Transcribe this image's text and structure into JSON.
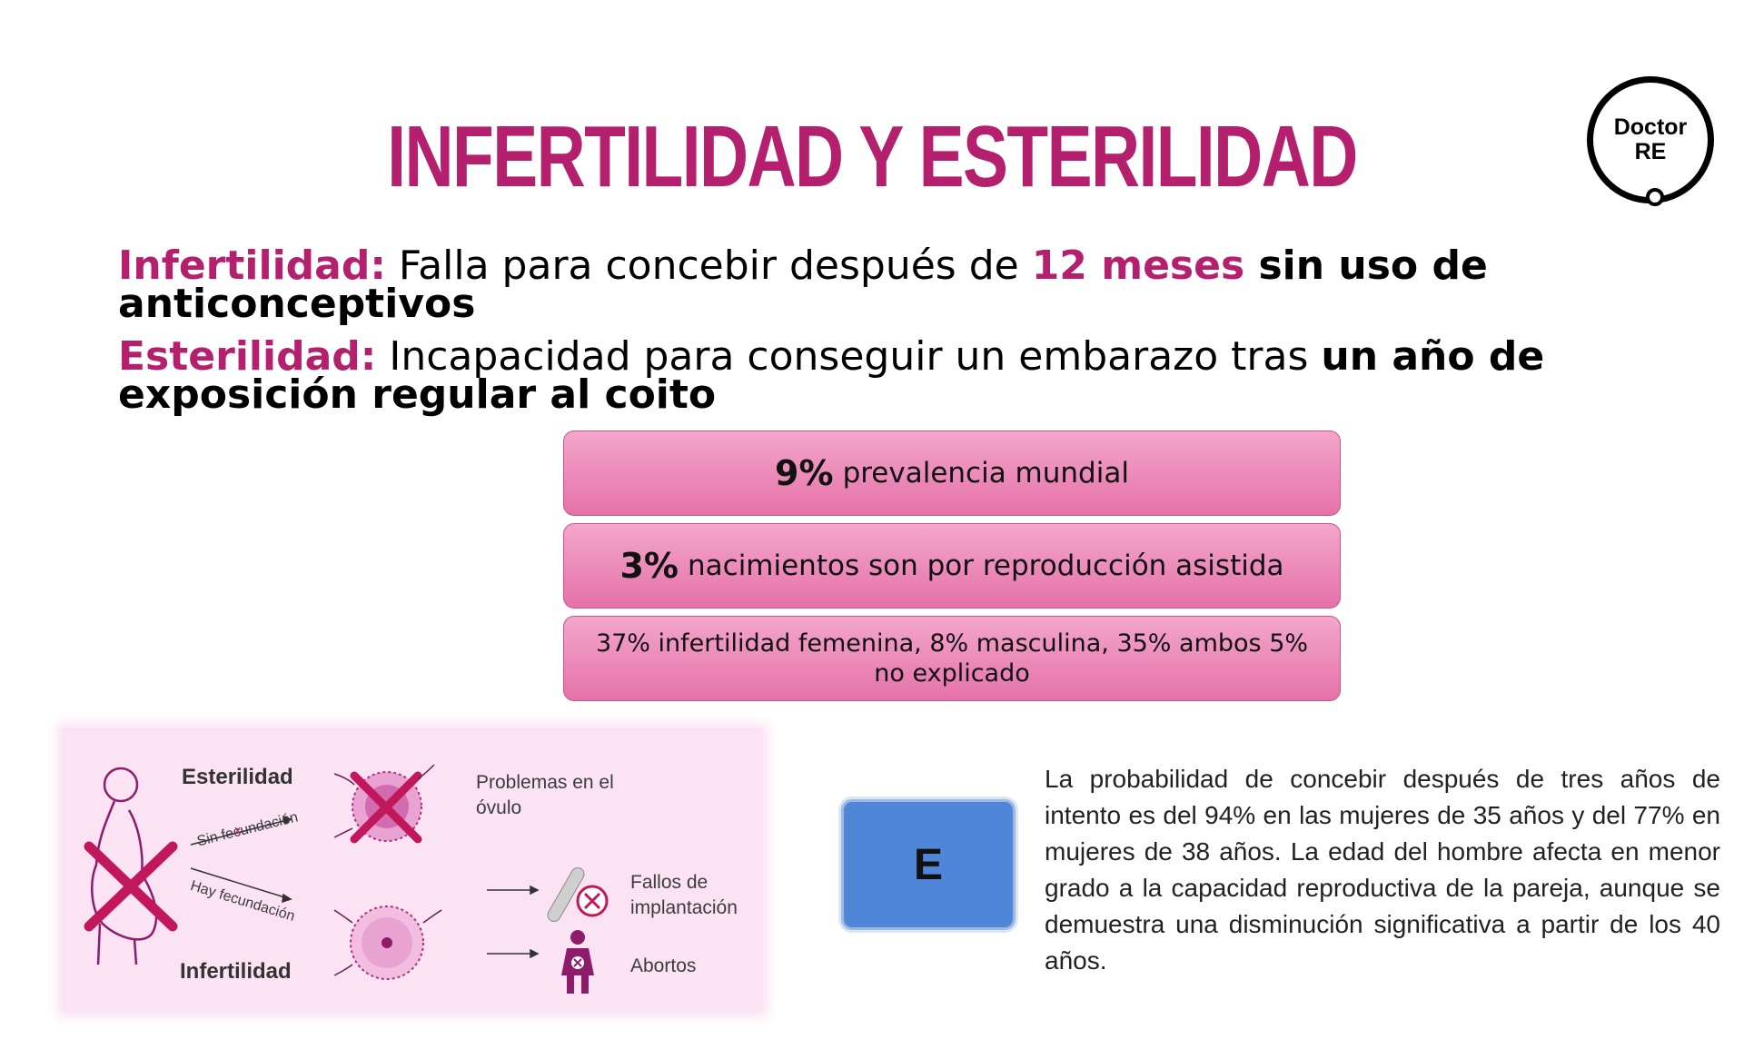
{
  "title": "INFERTILIDAD Y ESTERILIDAD",
  "logo": {
    "line1": "Doctor",
    "line2": "RE"
  },
  "definitions": {
    "infertilidad": {
      "term": "Infertilidad:",
      "text1": " Falla para concebir después de ",
      "highlight": "12 meses",
      "bold": " sin uso de anticonceptivos"
    },
    "esterilidad": {
      "term": "Esterilidad:",
      "text1": " Incapacidad para conseguir un embarazo tras ",
      "bold": "un año de exposición regular al coito"
    }
  },
  "stats": [
    {
      "big": "9%",
      "text": "prevalencia mundial"
    },
    {
      "big": "3%",
      "text": "nacimientos son por reproducción asistida"
    },
    {
      "text": "37% infertilidad femenina, 8% masculina, 35% ambos 5% no explicado"
    }
  ],
  "illustration": {
    "esterilidad": "Esterilidad",
    "infertilidad": "Infertilidad",
    "sin_fecundacion": "Sin fecundación",
    "hay_fecundacion": "Hay fecundación",
    "problemas_ovulo": "Problemas en el óvulo",
    "fallos_implantacion": "Fallos de implantación",
    "abortos": "Abortos",
    "colors": {
      "background": "#fbe3f3",
      "accent": "#c2185b",
      "cell": "#e9a3d3"
    }
  },
  "answer_label": "E",
  "paragraph": "La probabilidad de concebir después de tres años de intento es del 94% en las mujeres de 35 años y del 77% en mujeres de 38 años. La edad del hombre afecta en menor grado a la capacidad reproductiva de la pareja, aunque se demuestra una disminución significativa a partir de los 40 años."
}
